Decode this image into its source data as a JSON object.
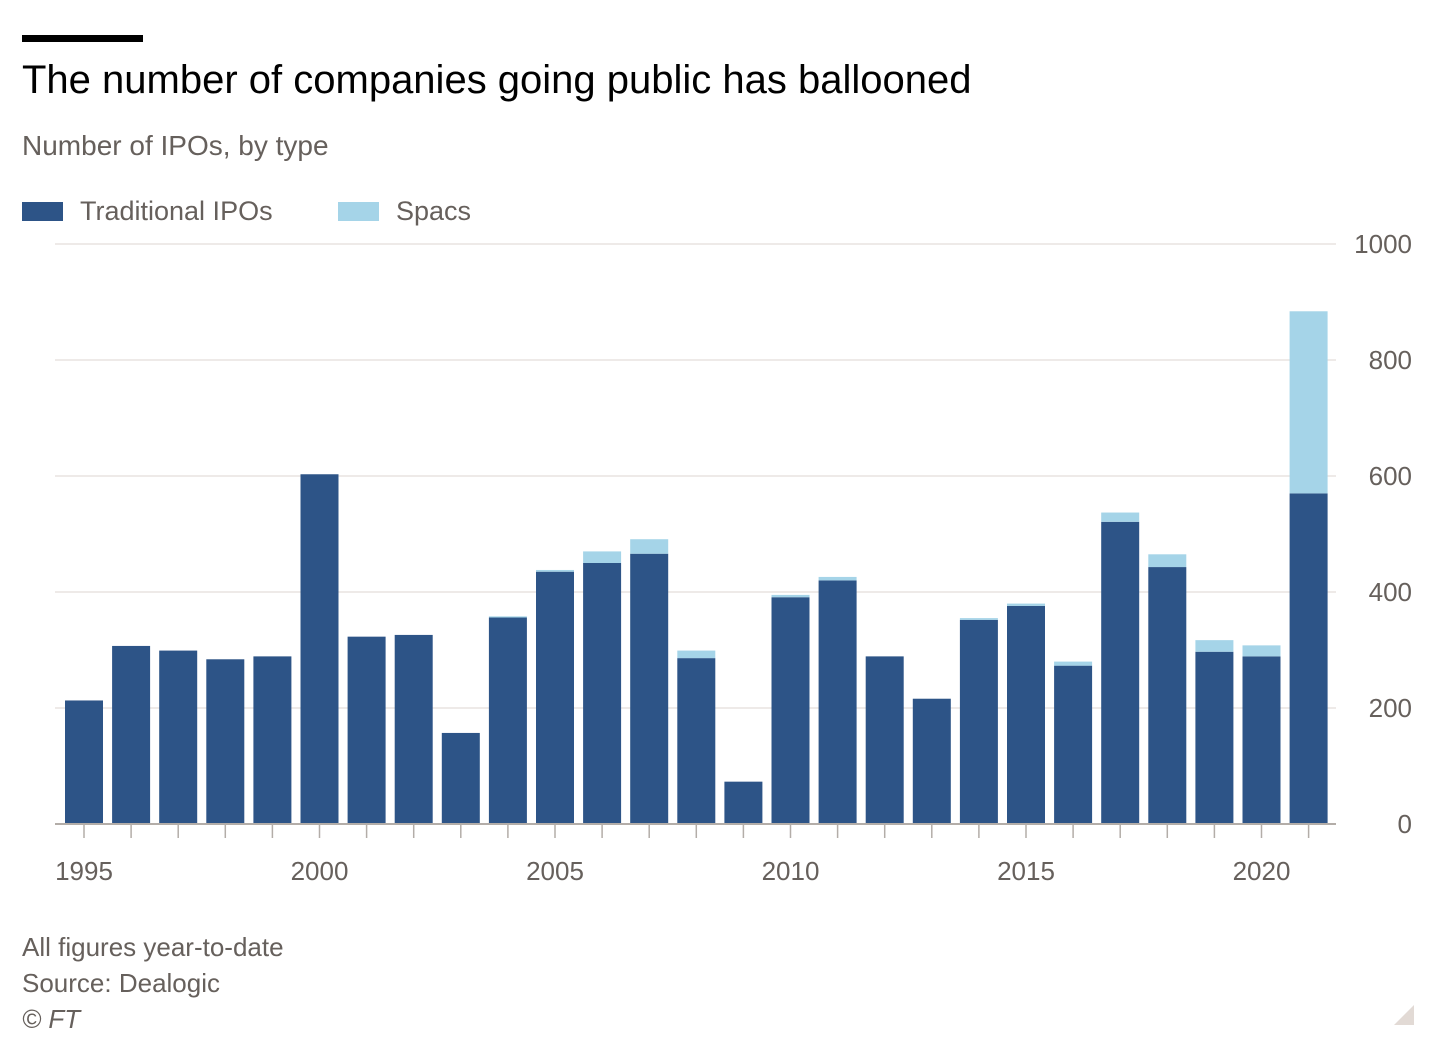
{
  "header": {
    "title": "The number of companies going public has ballooned",
    "subtitle": "Number of IPOs, by type"
  },
  "legend": {
    "items": [
      {
        "label": "Traditional IPOs",
        "color": "#2d5487"
      },
      {
        "label": "Spacs",
        "color": "#a5d4e8"
      }
    ]
  },
  "footer": {
    "note": "All figures year-to-date",
    "source": "Source: Dealogic",
    "copyright": "© FT"
  },
  "chart_data": {
    "type": "bar",
    "stacked": true,
    "categories": [
      1995,
      1996,
      1997,
      1998,
      1999,
      2000,
      2001,
      2002,
      2003,
      2004,
      2005,
      2006,
      2007,
      2008,
      2009,
      2010,
      2011,
      2012,
      2013,
      2014,
      2015,
      2016,
      2017,
      2018,
      2019,
      2020,
      2021
    ],
    "series": [
      {
        "name": "Traditional IPOs",
        "color": "#2d5487",
        "values": [
          213,
          307,
          299,
          284,
          289,
          603,
          323,
          326,
          157,
          356,
          435,
          450,
          466,
          286,
          73,
          391,
          420,
          289,
          216,
          352,
          376,
          273,
          521,
          443,
          297,
          289,
          570
        ]
      },
      {
        "name": "Spacs",
        "color": "#a5d4e8",
        "values": [
          0,
          0,
          0,
          0,
          0,
          0,
          0,
          0,
          0,
          2,
          3,
          20,
          25,
          13,
          0,
          4,
          6,
          0,
          0,
          3,
          4,
          7,
          16,
          22,
          20,
          19,
          314
        ]
      }
    ],
    "x_ticks": [
      "1995",
      "2000",
      "2005",
      "2010",
      "2015",
      "2020"
    ],
    "y_ticks": [
      "0",
      "200",
      "400",
      "600",
      "800",
      "1000"
    ],
    "ylim": [
      0,
      1000
    ],
    "y_axis_side": "right",
    "grid": true
  }
}
